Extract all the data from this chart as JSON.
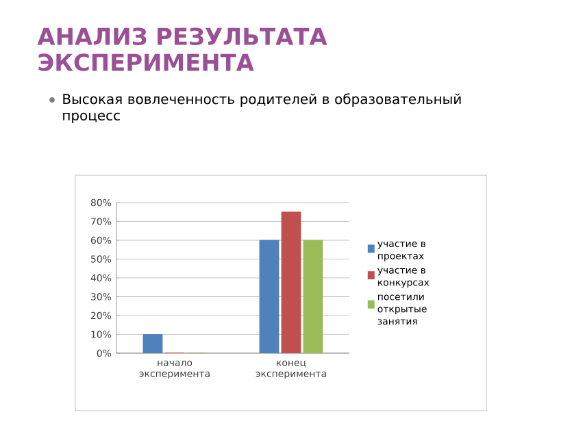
{
  "chart_data": {
    "type": "bar",
    "title": "АНАЛИЗ РЕЗУЛЬТАТА ЭКСПЕРИМЕНТА",
    "subtitle": "Высокая вовлеченность родителей в образовательный процесс",
    "categories": [
      "начало эксперимента",
      "конец эксперимента"
    ],
    "series": [
      {
        "name": "участие в проектах",
        "color": "#4f81bd",
        "values": [
          10,
          60
        ]
      },
      {
        "name": "участие в конкурсах",
        "color": "#c0504d",
        "values": [
          0,
          75
        ]
      },
      {
        "name": "посетили открытые занятия",
        "color": "#9bbb59",
        "values": [
          0,
          60
        ]
      }
    ],
    "ylim": [
      0,
      80
    ],
    "yticks": [
      {
        "value": 0,
        "label": "0%"
      },
      {
        "value": 10,
        "label": "10%"
      },
      {
        "value": 20,
        "label": "20%"
      },
      {
        "value": 30,
        "label": "30%"
      },
      {
        "value": 40,
        "label": "40%"
      },
      {
        "value": 50,
        "label": "50%"
      },
      {
        "value": 60,
        "label": "60%"
      },
      {
        "value": 70,
        "label": "70%"
      },
      {
        "value": 80,
        "label": "80%"
      }
    ],
    "grid": "y",
    "legend": "right"
  }
}
